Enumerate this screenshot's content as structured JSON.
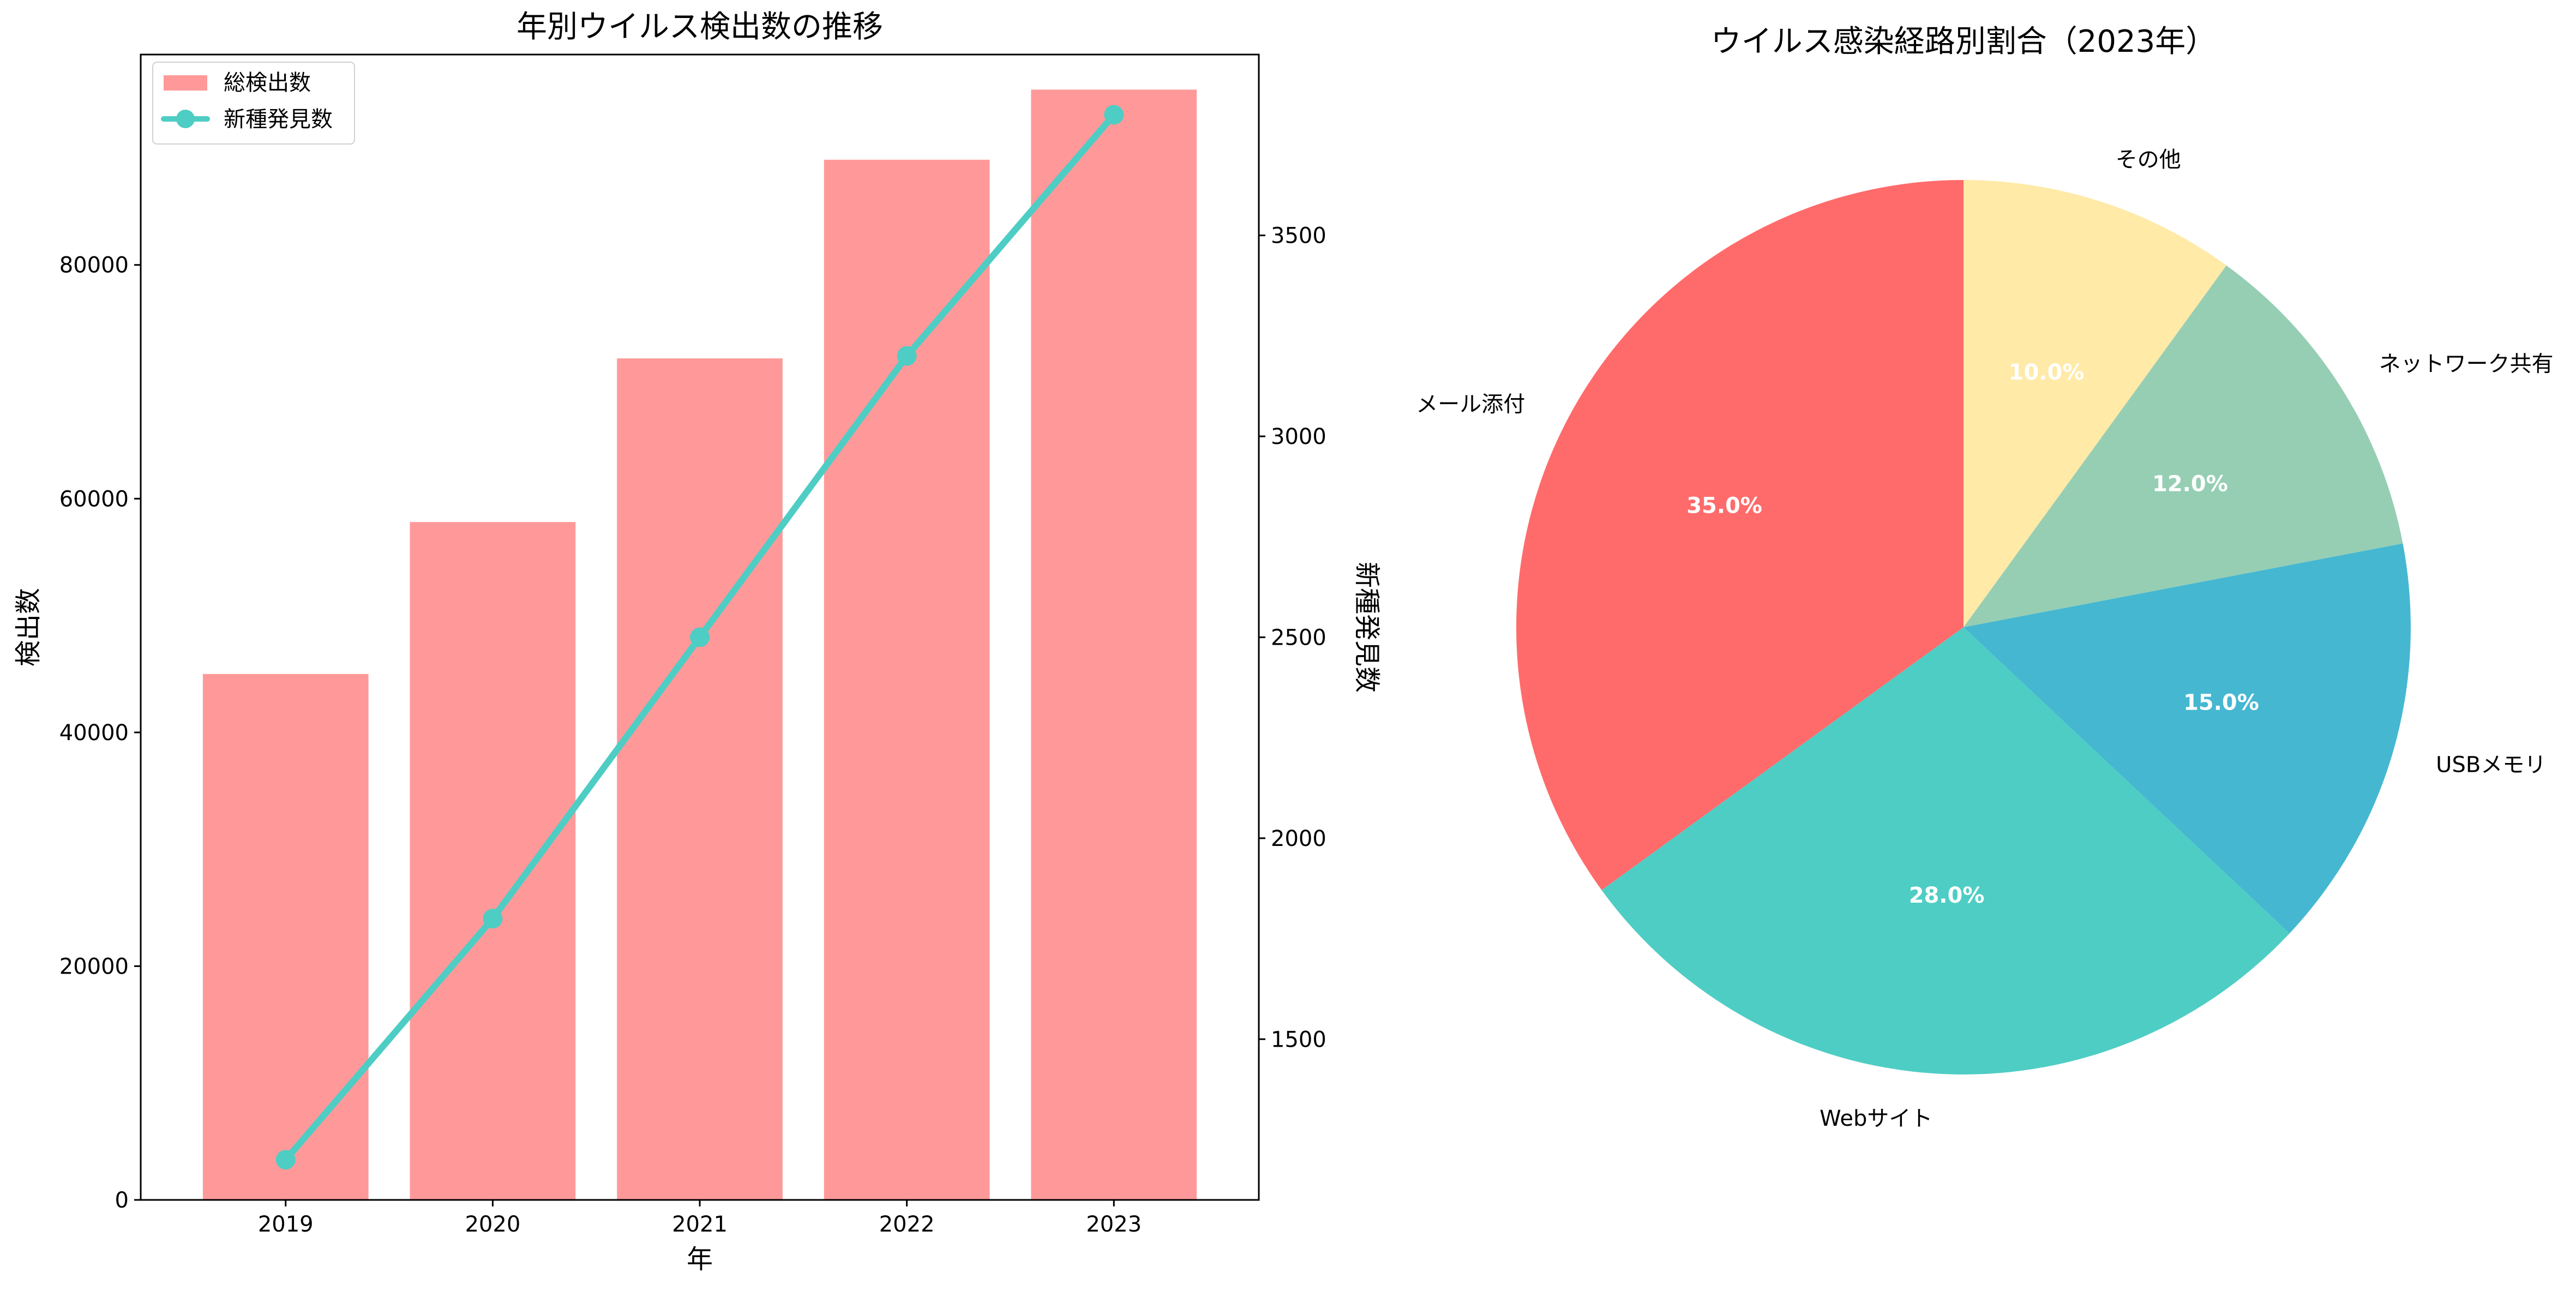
{
  "chart_data": [
    {
      "type": "bar",
      "title": "年別ウイルス検出数の推移",
      "xlabel": "年",
      "ylabel": "検出数",
      "y2label": "新種発見数",
      "categories": [
        "2019",
        "2020",
        "2021",
        "2022",
        "2023"
      ],
      "ylim": [
        0,
        98000
      ],
      "y2lim": [
        1100,
        3950
      ],
      "yticks": [
        0,
        20000,
        40000,
        60000,
        80000
      ],
      "y2ticks": [
        1500,
        2000,
        2500,
        3000,
        3500
      ],
      "series": [
        {
          "name": "総検出数",
          "type": "bar",
          "axis": "left",
          "color": "#ff9999",
          "values": [
            45000,
            58000,
            72000,
            89000,
            95000
          ]
        },
        {
          "name": "新種発見数",
          "type": "line",
          "axis": "right",
          "color": "#4ecdc4",
          "values": [
            1200,
            1800,
            2500,
            3200,
            3800
          ]
        }
      ],
      "legend": "top-left",
      "grid": false
    },
    {
      "type": "pie",
      "title": "ウイルス感染経路別割合（2023年）",
      "labels": [
        "メール添付",
        "Webサイト",
        "USBメモリ",
        "ネットワーク共有",
        "その他"
      ],
      "values": [
        35,
        28,
        15,
        12,
        10
      ],
      "pct_labels": [
        "35.0%",
        "28.0%",
        "15.0%",
        "12.0%",
        "10.0%"
      ],
      "colors": [
        "#ff6b6b",
        "#4ecdc4",
        "#45b7d1",
        "#96ceb4",
        "#ffeaa7"
      ],
      "start": "top",
      "direction": "counterclockwise"
    }
  ]
}
